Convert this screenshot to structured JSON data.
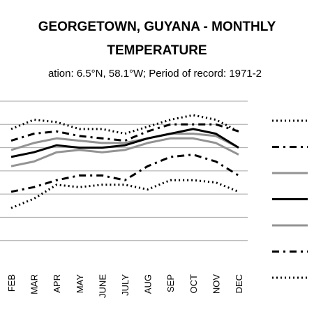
{
  "chart_data": {
    "type": "line",
    "title_line1": "GEORGETOWN, GUYANA - MONTHLY",
    "title_line2": "TEMPERATURE",
    "subtitle": "ation: 6.5°N, 58.1°W; Period of record: 1971-2",
    "categories": [
      "FEB",
      "MAR",
      "APR",
      "MAY",
      "JUNE",
      "JULY",
      "AUG",
      "SEP",
      "OCT",
      "NOV",
      "DEC"
    ],
    "ylim": [
      0,
      7
    ],
    "grid": true,
    "legend": "right",
    "series": [
      {
        "style": "dotted",
        "color": "#000000",
        "values": [
          5.8,
          6.2,
          6.1,
          5.8,
          5.8,
          5.6,
          5.9,
          6.2,
          6.4,
          6.2,
          5.7
        ]
      },
      {
        "style": "dash-dot",
        "color": "#000000",
        "values": [
          5.3,
          5.6,
          5.7,
          5.5,
          5.4,
          5.3,
          5.7,
          6.0,
          6.0,
          6.0,
          5.7
        ]
      },
      {
        "style": "solid",
        "color": "#939393",
        "values": [
          4.9,
          5.2,
          5.4,
          5.3,
          5.2,
          5.2,
          5.4,
          5.6,
          5.6,
          5.5,
          5.0
        ]
      },
      {
        "style": "solid",
        "color": "#000000",
        "values": [
          4.6,
          4.8,
          5.1,
          5.0,
          5.0,
          5.1,
          5.4,
          5.6,
          5.8,
          5.6,
          5.0
        ]
      },
      {
        "style": "solid",
        "color": "#939393",
        "values": [
          4.2,
          4.4,
          4.8,
          4.9,
          4.8,
          4.9,
          5.2,
          5.4,
          5.4,
          5.2,
          4.7
        ]
      },
      {
        "style": "dash-dot",
        "color": "#000000",
        "values": [
          3.1,
          3.3,
          3.6,
          3.8,
          3.8,
          3.6,
          4.2,
          4.6,
          4.7,
          4.4,
          3.8
        ]
      },
      {
        "style": "dotted",
        "color": "#000000",
        "values": [
          2.4,
          2.8,
          3.4,
          3.3,
          3.4,
          3.4,
          3.2,
          3.6,
          3.6,
          3.5,
          3.1
        ]
      }
    ]
  }
}
